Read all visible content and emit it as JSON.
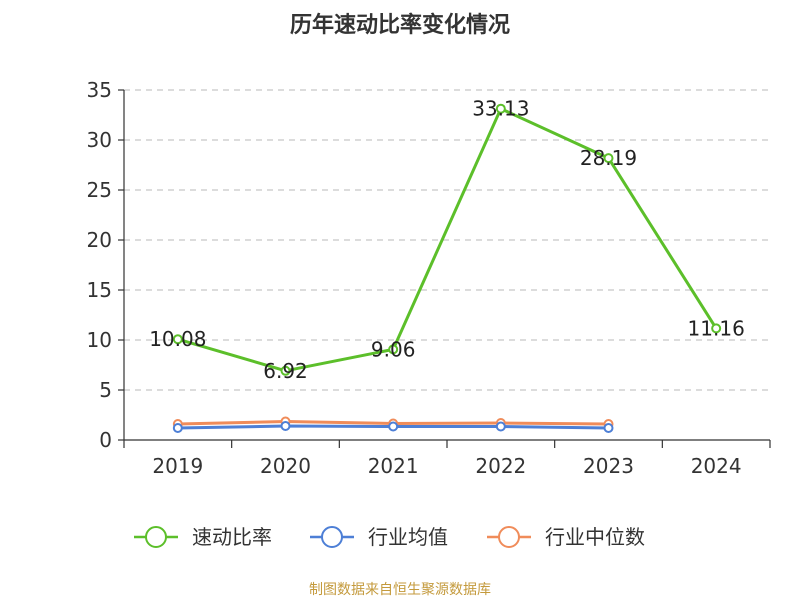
{
  "chart_data": {
    "type": "line",
    "title": "历年速动比率变化情况",
    "categories": [
      "2019",
      "2020",
      "2021",
      "2022",
      "2023",
      "2024"
    ],
    "ylim": [
      0,
      35
    ],
    "yticks": [
      0,
      5,
      10,
      15,
      20,
      25,
      30,
      35
    ],
    "grid": "horizontal dashed",
    "legend_position": "bottom",
    "series": [
      {
        "name": "速动比率",
        "color": "#5cbf2a",
        "labels": true,
        "values": [
          10.08,
          6.92,
          9.06,
          33.13,
          28.19,
          11.16
        ]
      },
      {
        "name": "行业均值",
        "color": "#4d7fd6",
        "labels": false,
        "values": [
          1.2,
          1.4,
          1.35,
          1.35,
          1.2,
          null
        ]
      },
      {
        "name": "行业中位数",
        "color": "#f08c5a",
        "labels": false,
        "values": [
          1.6,
          1.85,
          1.65,
          1.7,
          1.6,
          null
        ]
      }
    ]
  },
  "source_text": "制图数据来自恒生聚源数据库"
}
